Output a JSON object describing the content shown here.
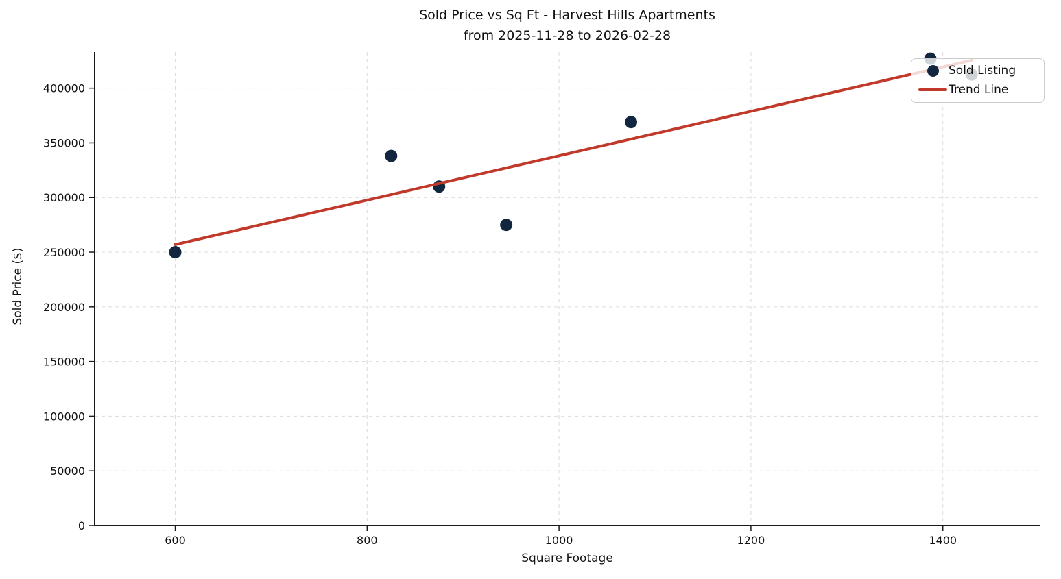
{
  "chart_data": {
    "type": "scatter",
    "title": "Sold Price vs Sq Ft - Harvest Hills Apartments",
    "subtitle": "from 2025-11-28 to 2026-02-28",
    "xlabel": "Square Footage",
    "ylabel": "Sold Price ($)",
    "xlim": [
      516,
      1501
    ],
    "ylim": [
      0,
      433000
    ],
    "xticks": [
      600,
      800,
      1000,
      1200,
      1400
    ],
    "yticks": [
      0,
      50000,
      100000,
      150000,
      200000,
      250000,
      300000,
      350000,
      400000
    ],
    "grid": true,
    "legend_position": "upper right",
    "legend": [
      "Sold Listing",
      "Trend Line"
    ],
    "series": [
      {
        "name": "Sold Listing",
        "kind": "scatter",
        "color": "#13263F",
        "marker_radius": 9,
        "points": [
          [
            600,
            250000
          ],
          [
            825,
            338000
          ],
          [
            875,
            310000
          ],
          [
            945,
            275000
          ],
          [
            1075,
            369000
          ],
          [
            1387,
            427000
          ],
          [
            1430,
            412500
          ]
        ]
      },
      {
        "name": "Trend Line",
        "kind": "line",
        "color": "#C0392B",
        "line_width": 4,
        "points": [
          [
            600,
            257000
          ],
          [
            1430,
            425500
          ]
        ]
      }
    ],
    "style": {
      "grid_color": "#dcdcdc",
      "spine_color": "#1a1a1a",
      "tick_color": "#1a1a1a",
      "text_color": "#111111",
      "background": "#ffffff"
    }
  }
}
